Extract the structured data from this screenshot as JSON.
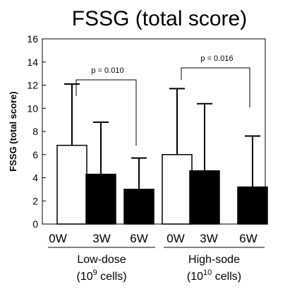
{
  "chart_data": {
    "type": "bar",
    "title": "FSSG (total score)",
    "ylabel": "FSSG (total score)",
    "ylim": [
      0,
      16
    ],
    "yticks": [
      "0",
      "2",
      "4",
      "6",
      "8",
      "10",
      "12",
      "14",
      "16"
    ],
    "categories": [
      "0W",
      "3W",
      "6W",
      "0W",
      "3W",
      "6W"
    ],
    "values": [
      6.8,
      4.3,
      3.0,
      6.0,
      4.6,
      3.2
    ],
    "error_upper": [
      12.1,
      8.8,
      5.7,
      11.7,
      10.4,
      7.6
    ],
    "fills": [
      "white",
      "black",
      "black",
      "white",
      "black",
      "black"
    ],
    "groups": [
      {
        "line1": "Low-dose",
        "line2_prefix": "(10",
        "line2_sup": "9",
        "line2_suffix": " cells)"
      },
      {
        "line1": "High-sode",
        "line2_prefix": "(10",
        "line2_sup": "10",
        "line2_suffix": " cells)"
      }
    ],
    "annotations": [
      {
        "text": "p = 0.010",
        "from_index": 0,
        "to_index": 2
      },
      {
        "text": "p = 0.016",
        "from_index": 3,
        "to_index": 5
      }
    ]
  }
}
